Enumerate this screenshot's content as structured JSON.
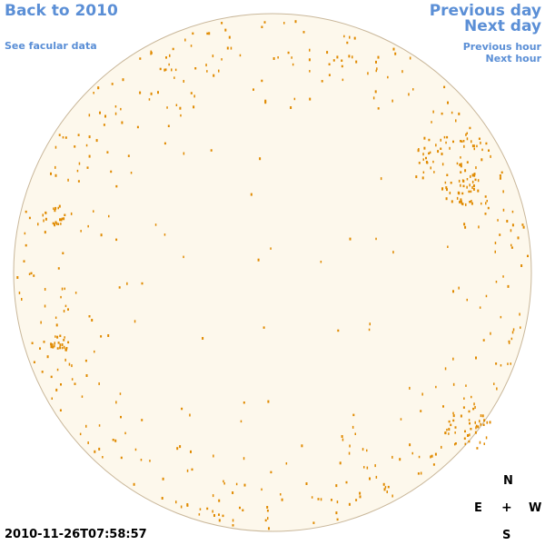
{
  "nav": {
    "back_label": "Back to 2010",
    "facular_label": "See facular data",
    "prev_day_label": "Previous day",
    "next_day_label": "Next day",
    "prev_hour_label": "Previous hour",
    "next_hour_label": "Next hour"
  },
  "timestamp": "2010-11-26T07:58:57",
  "compass": {
    "north": "N",
    "east": "E",
    "center": "+",
    "west": "W",
    "south": "S"
  },
  "colors": {
    "disk_fill": "#fdf8ec",
    "disk_edge": "#c9b79a",
    "facula": "#e08a00",
    "link": "#5b8fd6"
  }
}
